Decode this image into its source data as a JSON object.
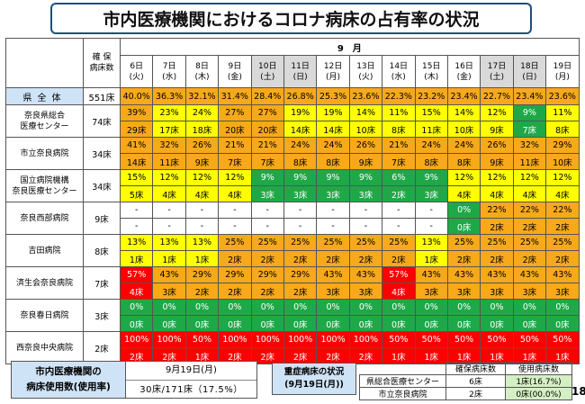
{
  "title": "市内医療機関におけるコロナ病床の占有率の状況",
  "table": {
    "beds_header_line1": "確 保",
    "beds_header_line2": "病床数",
    "month": "9　月",
    "dates": [
      {
        "day": "6日",
        "wd": "(火)",
        "sat": false
      },
      {
        "day": "7日",
        "wd": "(水)",
        "sat": false
      },
      {
        "day": "8日",
        "wd": "(木)",
        "sat": false
      },
      {
        "day": "9日",
        "wd": "(金)",
        "sat": false
      },
      {
        "day": "10日",
        "wd": "(土)",
        "sat": true
      },
      {
        "day": "11日",
        "wd": "(日)",
        "sat": true
      },
      {
        "day": "12日",
        "wd": "(月)",
        "sat": false
      },
      {
        "day": "13日",
        "wd": "(火)",
        "sat": false
      },
      {
        "day": "14日",
        "wd": "(水)",
        "sat": false
      },
      {
        "day": "15日",
        "wd": "(木)",
        "sat": false
      },
      {
        "day": "16日",
        "wd": "(金)",
        "sat": false
      },
      {
        "day": "17日",
        "wd": "(土)",
        "sat": true
      },
      {
        "day": "18日",
        "wd": "(日)",
        "sat": true
      },
      {
        "day": "19日",
        "wd": "(月)",
        "sat": false
      }
    ],
    "total": {
      "label": "県全体",
      "beds": "551床",
      "values": [
        "40.0%",
        "36.3%",
        "32.1%",
        "31.4%",
        "28.4%",
        "26.8%",
        "25.3%",
        "23.6%",
        "22.3%",
        "23.2%",
        "23.4%",
        "22.7%",
        "23.4%",
        "23.6%"
      ]
    },
    "hospitals": [
      {
        "name": [
          "奈良県総合",
          "医療センター"
        ],
        "beds": "74床",
        "pct": [
          "39%",
          "23%",
          "24%",
          "27%",
          "27%",
          "19%",
          "19%",
          "14%",
          "11%",
          "15%",
          "14%",
          "12%",
          "9%",
          "11%"
        ],
        "pct_colors": [
          "O",
          "Y",
          "Y",
          "O",
          "O",
          "Y",
          "Y",
          "Y",
          "Y",
          "Y",
          "Y",
          "Y",
          "G",
          "Y"
        ],
        "cnt": [
          "29床",
          "17床",
          "18床",
          "20床",
          "20床",
          "14床",
          "14床",
          "10床",
          "8床",
          "11床",
          "10床",
          "9床",
          "7床",
          "8床"
        ],
        "cnt_colors": [
          "O",
          "Y",
          "Y",
          "O",
          "O",
          "Y",
          "Y",
          "Y",
          "Y",
          "Y",
          "Y",
          "Y",
          "G",
          "Y"
        ]
      },
      {
        "name": [
          "市立奈良病院"
        ],
        "beds": "34床",
        "pct": [
          "41%",
          "32%",
          "26%",
          "21%",
          "21%",
          "24%",
          "24%",
          "26%",
          "21%",
          "24%",
          "24%",
          "26%",
          "32%",
          "29%"
        ],
        "pct_colors": [
          "O",
          "O",
          "O",
          "O",
          "O",
          "O",
          "O",
          "O",
          "O",
          "O",
          "O",
          "O",
          "O",
          "O"
        ],
        "cnt": [
          "14床",
          "11床",
          "9床",
          "7床",
          "7床",
          "8床",
          "8床",
          "9床",
          "7床",
          "8床",
          "8床",
          "9床",
          "11床",
          "10床"
        ],
        "cnt_colors": [
          "O",
          "O",
          "O",
          "O",
          "O",
          "O",
          "O",
          "O",
          "O",
          "O",
          "O",
          "O",
          "O",
          "O"
        ]
      },
      {
        "name": [
          "国立病院機構",
          "奈良医療センター"
        ],
        "beds": "34床",
        "pct": [
          "15%",
          "12%",
          "12%",
          "12%",
          "9%",
          "9%",
          "9%",
          "9%",
          "6%",
          "9%",
          "12%",
          "12%",
          "12%",
          "12%"
        ],
        "pct_colors": [
          "Y",
          "Y",
          "Y",
          "Y",
          "G",
          "G",
          "G",
          "G",
          "G",
          "G",
          "Y",
          "Y",
          "Y",
          "Y"
        ],
        "cnt": [
          "5床",
          "4床",
          "4床",
          "4床",
          "3床",
          "3床",
          "3床",
          "3床",
          "2床",
          "3床",
          "4床",
          "4床",
          "4床",
          "4床"
        ],
        "cnt_colors": [
          "Y",
          "Y",
          "Y",
          "Y",
          "G",
          "G",
          "G",
          "G",
          "G",
          "G",
          "Y",
          "Y",
          "Y",
          "Y"
        ]
      },
      {
        "name": [
          "奈良西部病院"
        ],
        "beds": "9床",
        "pct": [
          "-",
          "-",
          "-",
          "-",
          "-",
          "-",
          "-",
          "-",
          "-",
          "-",
          "0%",
          "22%",
          "22%",
          "22%"
        ],
        "pct_colors": [
          "W",
          "W",
          "W",
          "W",
          "W",
          "W",
          "W",
          "W",
          "W",
          "W",
          "G",
          "O",
          "O",
          "O"
        ],
        "cnt": [
          "-",
          "-",
          "-",
          "-",
          "-",
          "-",
          "-",
          "-",
          "-",
          "-",
          "0床",
          "2床",
          "2床",
          "2床"
        ],
        "cnt_colors": [
          "W",
          "W",
          "W",
          "W",
          "W",
          "W",
          "W",
          "W",
          "W",
          "W",
          "G",
          "O",
          "O",
          "O"
        ]
      },
      {
        "name": [
          "吉田病院"
        ],
        "beds": "8床",
        "pct": [
          "13%",
          "13%",
          "13%",
          "25%",
          "25%",
          "25%",
          "25%",
          "25%",
          "25%",
          "13%",
          "25%",
          "25%",
          "25%",
          "25%"
        ],
        "pct_colors": [
          "Y",
          "Y",
          "Y",
          "O",
          "O",
          "O",
          "O",
          "O",
          "O",
          "Y",
          "O",
          "O",
          "O",
          "O"
        ],
        "cnt": [
          "1床",
          "1床",
          "1床",
          "2床",
          "2床",
          "2床",
          "2床",
          "2床",
          "2床",
          "1床",
          "2床",
          "2床",
          "2床",
          "2床"
        ],
        "cnt_colors": [
          "Y",
          "Y",
          "Y",
          "O",
          "O",
          "O",
          "O",
          "O",
          "O",
          "Y",
          "O",
          "O",
          "O",
          "O"
        ]
      },
      {
        "name": [
          "済生会奈良病院"
        ],
        "beds": "7床",
        "pct": [
          "57%",
          "43%",
          "29%",
          "29%",
          "29%",
          "29%",
          "43%",
          "43%",
          "57%",
          "43%",
          "43%",
          "43%",
          "43%",
          "43%"
        ],
        "pct_colors": [
          "R",
          "O",
          "O",
          "O",
          "O",
          "O",
          "O",
          "O",
          "R",
          "O",
          "O",
          "O",
          "O",
          "O"
        ],
        "cnt": [
          "4床",
          "3床",
          "2床",
          "2床",
          "2床",
          "2床",
          "3床",
          "3床",
          "4床",
          "3床",
          "3床",
          "3床",
          "3床",
          "3床"
        ],
        "cnt_colors": [
          "R",
          "O",
          "O",
          "O",
          "O",
          "O",
          "O",
          "O",
          "R",
          "O",
          "O",
          "O",
          "O",
          "O"
        ]
      },
      {
        "name": [
          "奈良春日病院"
        ],
        "beds": "3床",
        "pct": [
          "0%",
          "0%",
          "0%",
          "0%",
          "0%",
          "0%",
          "0%",
          "0%",
          "0%",
          "0%",
          "0%",
          "0%",
          "0%",
          "0%"
        ],
        "pct_colors": [
          "G",
          "G",
          "G",
          "G",
          "G",
          "G",
          "G",
          "G",
          "G",
          "G",
          "G",
          "G",
          "G",
          "G"
        ],
        "cnt": [
          "0床",
          "0床",
          "0床",
          "0床",
          "0床",
          "0床",
          "0床",
          "0床",
          "0床",
          "0床",
          "0床",
          "0床",
          "0床",
          "0床"
        ],
        "cnt_colors": [
          "G",
          "G",
          "G",
          "G",
          "G",
          "G",
          "G",
          "G",
          "G",
          "G",
          "G",
          "G",
          "G",
          "G"
        ]
      },
      {
        "name": [
          "西奈良中央病院"
        ],
        "beds": "2床",
        "pct": [
          "100%",
          "100%",
          "50%",
          "100%",
          "100%",
          "100%",
          "100%",
          "100%",
          "50%",
          "50%",
          "50%",
          "50%",
          "50%",
          "50%"
        ],
        "pct_colors": [
          "R",
          "R",
          "R",
          "R",
          "R",
          "R",
          "R",
          "R",
          "R",
          "R",
          "R",
          "R",
          "R",
          "R"
        ],
        "cnt": [
          "2床",
          "2床",
          "1床",
          "2床",
          "2床",
          "2床",
          "2床",
          "2床",
          "1床",
          "1床",
          "1床",
          "1床",
          "1床",
          "1床"
        ],
        "cnt_colors": [
          "R",
          "R",
          "R",
          "R",
          "R",
          "R",
          "R",
          "R",
          "R",
          "R",
          "R",
          "R",
          "R",
          "R"
        ]
      }
    ]
  },
  "bottom_left": {
    "label_line1": "市内医療機関の",
    "label_line2": "病床使用数(使用率)",
    "date": "9月19日(月)",
    "value": "30床/171床（17.5%）"
  },
  "severe": {
    "label_line1": "重症病床の状況",
    "label_line2": "(9月19日(月))",
    "col1": "確保病床数",
    "col2": "使用病床数",
    "rows": [
      {
        "name": "県総合医療センター",
        "secured": "6床",
        "used": "1床(16.7%)"
      },
      {
        "name": "市立奈良病院",
        "secured": "2床",
        "used": "0床(00.0%)"
      }
    ]
  },
  "page_number": "18",
  "colors": {
    "yellow": "#ffff00",
    "orange": "#f7a91a",
    "green": "#1fa848",
    "red": "#ff0000",
    "header_blue": "#cfe3f7"
  }
}
